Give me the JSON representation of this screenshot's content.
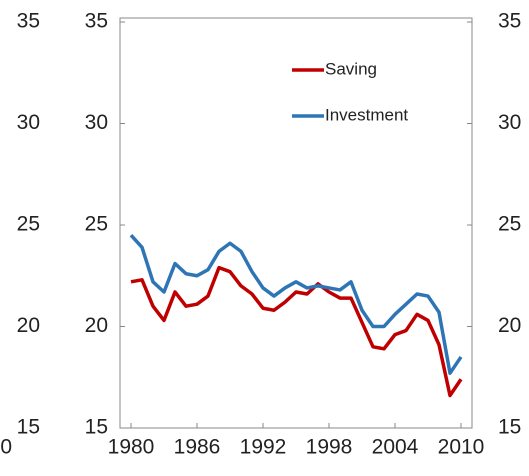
{
  "chart_data": {
    "type": "line",
    "x": [
      1980,
      1981,
      1982,
      1983,
      1984,
      1985,
      1986,
      1987,
      1988,
      1989,
      1990,
      1991,
      1992,
      1993,
      1994,
      1995,
      1996,
      1997,
      1998,
      1999,
      2000,
      2001,
      2002,
      2003,
      2004,
      2005,
      2006,
      2007,
      2008,
      2009,
      2010
    ],
    "series": [
      {
        "name": "Saving",
        "color": "#c00000",
        "values": [
          22.2,
          22.3,
          21.0,
          20.3,
          21.7,
          21.0,
          21.1,
          21.5,
          22.9,
          22.7,
          22.0,
          21.6,
          20.9,
          20.8,
          21.2,
          21.7,
          21.6,
          22.1,
          21.7,
          21.4,
          21.4,
          20.2,
          19.0,
          18.9,
          19.6,
          19.8,
          20.6,
          20.3,
          19.1,
          16.6,
          17.4
        ]
      },
      {
        "name": "Investment",
        "color": "#2e75b6",
        "values": [
          24.5,
          23.9,
          22.2,
          21.7,
          23.1,
          22.6,
          22.5,
          22.8,
          23.7,
          24.1,
          23.7,
          22.7,
          21.9,
          21.5,
          21.9,
          22.2,
          21.9,
          22.0,
          21.9,
          21.8,
          22.2,
          20.8,
          20.0,
          20.0,
          20.6,
          21.1,
          21.6,
          21.5,
          20.7,
          17.7,
          18.5
        ]
      }
    ],
    "xlim": [
      1979,
      2011
    ],
    "xticks": [
      1980,
      1986,
      1992,
      1998,
      2004,
      2010
    ],
    "ylim": [
      15,
      35
    ],
    "yticks": [
      15,
      20,
      25,
      30,
      35
    ],
    "y2lim": [
      15,
      35
    ],
    "y2ticks": [
      15,
      20,
      25,
      30,
      35
    ],
    "legend": "upper right"
  },
  "left_panel_fragment": {
    "yticks": [
      15,
      20,
      25,
      30,
      35
    ],
    "x_tick_fragment": "0"
  }
}
